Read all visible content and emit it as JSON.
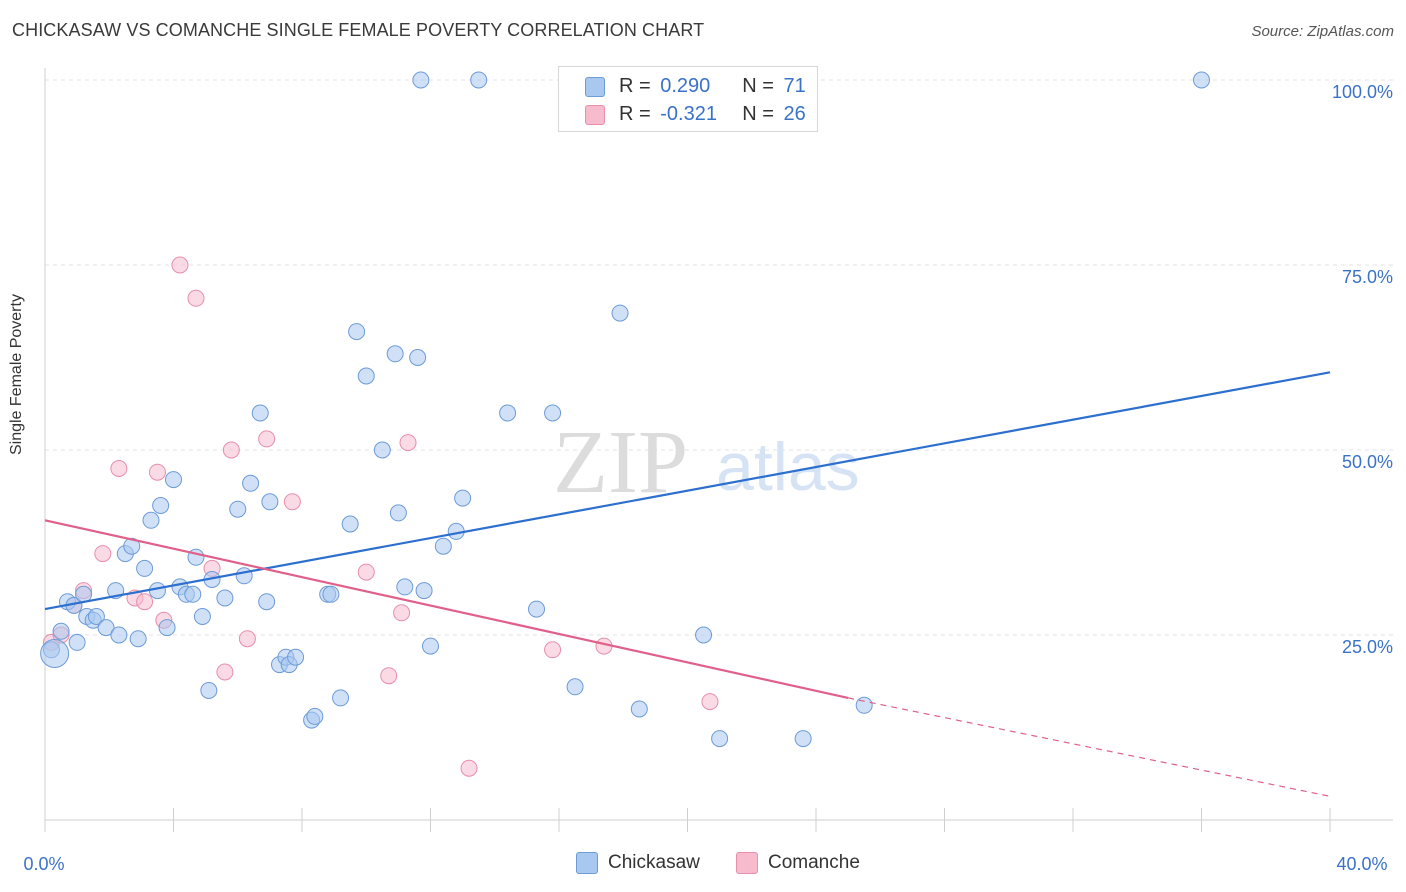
{
  "header": {
    "title": "CHICKASAW VS COMANCHE SINGLE FEMALE POVERTY CORRELATION CHART",
    "source": "Source: ZipAtlas.com"
  },
  "legend": {
    "rows": [
      {
        "r_label": "R =",
        "r_value": "0.290",
        "n_label": "N =",
        "n_value": "71"
      },
      {
        "r_label": "R =",
        "r_value": "-0.321",
        "n_label": "N =",
        "n_value": "26"
      }
    ],
    "series_labels": [
      "Chickasaw",
      "Comanche"
    ]
  },
  "watermark": {
    "zip": "ZIP",
    "atlas": "atlas"
  },
  "colors": {
    "chickasaw_fill": "#a9c8f0",
    "chickasaw_stroke": "#6c9bd8",
    "chickasaw_line": "#2c6fcf",
    "comanche_fill": "#f6bccd",
    "comanche_stroke": "#e78fab",
    "comanche_line": "#e0608a",
    "tick_label": "#3a72c8"
  },
  "chart_data": {
    "type": "scatter",
    "title": "CHICKASAW VS COMANCHE SINGLE FEMALE POVERTY CORRELATION CHART",
    "xlabel": "",
    "ylabel": "Single Female Poverty",
    "xlim": [
      0,
      40
    ],
    "ylim": [
      0,
      105
    ],
    "x_tick_labels": [
      "0.0%",
      "40.0%"
    ],
    "y_ticks": [
      25,
      50,
      75,
      100
    ],
    "y_tick_labels": [
      "25.0%",
      "50.0%",
      "75.0%",
      "100.0%"
    ],
    "grid": true,
    "series": [
      {
        "name": "Chickasaw",
        "R": 0.29,
        "N": 71,
        "trend": {
          "x": [
            0,
            40
          ],
          "y": [
            28.5,
            60.5
          ]
        },
        "points": [
          [
            0.2,
            23
          ],
          [
            0.5,
            25.5
          ],
          [
            0.7,
            29.5
          ],
          [
            0.9,
            29
          ],
          [
            1.0,
            24
          ],
          [
            1.2,
            30.5
          ],
          [
            1.3,
            27.5
          ],
          [
            1.5,
            27
          ],
          [
            1.6,
            27.5
          ],
          [
            1.9,
            26
          ],
          [
            2.2,
            31
          ],
          [
            2.3,
            25
          ],
          [
            2.5,
            36
          ],
          [
            2.7,
            37
          ],
          [
            2.9,
            24.5
          ],
          [
            3.1,
            34
          ],
          [
            3.3,
            40.5
          ],
          [
            3.5,
            31
          ],
          [
            3.6,
            42.5
          ],
          [
            3.8,
            26
          ],
          [
            4.0,
            46
          ],
          [
            4.2,
            31.5
          ],
          [
            4.4,
            30.5
          ],
          [
            4.6,
            30.5
          ],
          [
            4.7,
            35.5
          ],
          [
            4.9,
            27.5
          ],
          [
            5.1,
            17.5
          ],
          [
            5.2,
            32.5
          ],
          [
            5.6,
            30
          ],
          [
            6.0,
            42
          ],
          [
            6.2,
            33
          ],
          [
            6.4,
            45.5
          ],
          [
            6.7,
            55
          ],
          [
            6.9,
            29.5
          ],
          [
            7.0,
            43
          ],
          [
            7.3,
            21
          ],
          [
            7.5,
            22
          ],
          [
            7.6,
            21
          ],
          [
            7.8,
            22
          ],
          [
            8.3,
            13.5
          ],
          [
            8.4,
            14
          ],
          [
            8.8,
            30.5
          ],
          [
            8.9,
            30.5
          ],
          [
            9.2,
            16.5
          ],
          [
            9.5,
            40
          ],
          [
            9.7,
            66
          ],
          [
            10.0,
            60
          ],
          [
            10.5,
            50
          ],
          [
            10.9,
            63
          ],
          [
            11.0,
            41.5
          ],
          [
            11.2,
            31.5
          ],
          [
            11.6,
            62.5
          ],
          [
            11.7,
            100
          ],
          [
            11.8,
            31
          ],
          [
            12.0,
            23.5
          ],
          [
            12.4,
            37
          ],
          [
            12.8,
            39
          ],
          [
            13.0,
            43.5
          ],
          [
            13.5,
            100
          ],
          [
            14.4,
            55
          ],
          [
            15.3,
            28.5
          ],
          [
            15.8,
            55
          ],
          [
            16.5,
            18
          ],
          [
            17.9,
            68.5
          ],
          [
            18.5,
            15
          ],
          [
            20.5,
            25
          ],
          [
            21.0,
            11
          ],
          [
            23.6,
            11
          ],
          [
            25.5,
            15.5
          ],
          [
            36.0,
            100
          ],
          [
            0.3,
            22.5
          ]
        ]
      },
      {
        "name": "Comanche",
        "R": -0.321,
        "N": 26,
        "trend": {
          "x": [
            0,
            25
          ],
          "y": [
            40.5,
            16.5
          ]
        },
        "trend_dashed": {
          "x": [
            25,
            40
          ],
          "y": [
            16.5,
            3.2
          ]
        },
        "points": [
          [
            0.2,
            24
          ],
          [
            0.5,
            25
          ],
          [
            0.9,
            29
          ],
          [
            1.2,
            31
          ],
          [
            1.8,
            36
          ],
          [
            2.3,
            47.5
          ],
          [
            2.8,
            30
          ],
          [
            3.1,
            29.5
          ],
          [
            3.5,
            47
          ],
          [
            3.7,
            27
          ],
          [
            4.2,
            75
          ],
          [
            4.7,
            70.5
          ],
          [
            5.2,
            34
          ],
          [
            5.6,
            20
          ],
          [
            5.8,
            50
          ],
          [
            6.3,
            24.5
          ],
          [
            6.9,
            51.5
          ],
          [
            7.7,
            43
          ],
          [
            10.0,
            33.5
          ],
          [
            10.7,
            19.5
          ],
          [
            11.1,
            28
          ],
          [
            11.3,
            51
          ],
          [
            13.2,
            7
          ],
          [
            15.8,
            23
          ],
          [
            17.4,
            23.5
          ],
          [
            20.7,
            16
          ]
        ]
      }
    ]
  }
}
